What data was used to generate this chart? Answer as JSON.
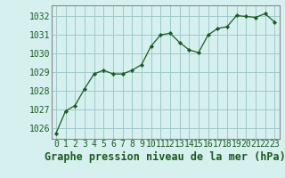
{
  "x": [
    0,
    1,
    2,
    3,
    4,
    5,
    6,
    7,
    8,
    9,
    10,
    11,
    12,
    13,
    14,
    15,
    16,
    17,
    18,
    19,
    20,
    21,
    22,
    23
  ],
  "y": [
    1025.7,
    1026.9,
    1027.2,
    1028.1,
    1028.9,
    1029.1,
    1028.9,
    1028.9,
    1029.1,
    1029.4,
    1030.4,
    1031.0,
    1031.1,
    1030.6,
    1030.2,
    1030.05,
    1031.0,
    1031.35,
    1031.45,
    1032.05,
    1032.0,
    1031.95,
    1032.15,
    1031.7
  ],
  "line_color": "#1a5c1a",
  "marker_color": "#1a5c1a",
  "bg_color": "#d6f0f0",
  "grid_color": "#a0c8c8",
  "title": "Graphe pression niveau de la mer (hPa)",
  "ylabel_vals": [
    1026,
    1027,
    1028,
    1029,
    1030,
    1031,
    1032
  ],
  "ylim": [
    1025.4,
    1032.6
  ],
  "xlim": [
    -0.5,
    23.5
  ],
  "tick_color": "#1a5c1a",
  "border_color": "#888888",
  "title_fontsize": 8.5,
  "tick_fontsize": 7.0
}
